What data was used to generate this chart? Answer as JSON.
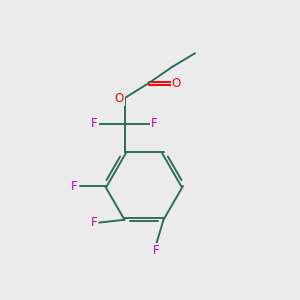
{
  "bg_color": "#ebebeb",
  "bond_color": "#2d6e5a",
  "F_color": "#cc00cc",
  "O_color": "#ff0000",
  "lw": 1.4,
  "figsize": [
    3.0,
    3.0
  ],
  "dpi": 100,
  "xlim": [
    0,
    10
  ],
  "ylim": [
    0,
    10
  ]
}
